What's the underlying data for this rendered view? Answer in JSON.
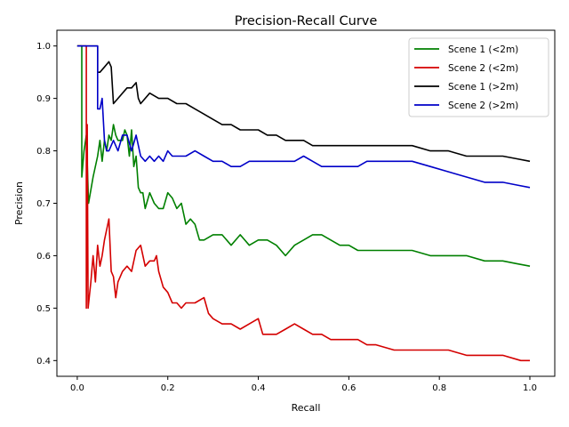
{
  "chart_data": {
    "type": "line",
    "title": "Precision-Recall Curve",
    "xlabel": "Recall",
    "ylabel": "Precision",
    "xlim": [
      -0.045,
      1.055
    ],
    "ylim": [
      0.37,
      1.03
    ],
    "xticks": [
      {
        "value": 0.0,
        "label": "0.0"
      },
      {
        "value": 0.2,
        "label": "0.2"
      },
      {
        "value": 0.4,
        "label": "0.4"
      },
      {
        "value": 0.6,
        "label": "0.6"
      },
      {
        "value": 0.8,
        "label": "0.8"
      },
      {
        "value": 1.0,
        "label": "1.0"
      }
    ],
    "yticks": [
      {
        "value": 0.4,
        "label": "0.4"
      },
      {
        "value": 0.5,
        "label": "0.5"
      },
      {
        "value": 0.6,
        "label": "0.6"
      },
      {
        "value": 0.7,
        "label": "0.7"
      },
      {
        "value": 0.8,
        "label": "0.8"
      },
      {
        "value": 0.9,
        "label": "0.9"
      },
      {
        "value": 1.0,
        "label": "1.0"
      }
    ],
    "grid": false,
    "legend_position": "top-right",
    "series": [
      {
        "name": "Scene 1 (<2m)",
        "color": "#008000",
        "points": [
          [
            0.0,
            1.0
          ],
          [
            0.005,
            1.0
          ],
          [
            0.01,
            1.0
          ],
          [
            0.01,
            0.75
          ],
          [
            0.015,
            0.8
          ],
          [
            0.02,
            0.83
          ],
          [
            0.025,
            0.7
          ],
          [
            0.035,
            0.75
          ],
          [
            0.045,
            0.79
          ],
          [
            0.05,
            0.82
          ],
          [
            0.055,
            0.78
          ],
          [
            0.06,
            0.82
          ],
          [
            0.065,
            0.8
          ],
          [
            0.07,
            0.83
          ],
          [
            0.075,
            0.82
          ],
          [
            0.08,
            0.85
          ],
          [
            0.085,
            0.83
          ],
          [
            0.09,
            0.82
          ],
          [
            0.1,
            0.82
          ],
          [
            0.105,
            0.84
          ],
          [
            0.11,
            0.83
          ],
          [
            0.115,
            0.79
          ],
          [
            0.12,
            0.84
          ],
          [
            0.125,
            0.77
          ],
          [
            0.13,
            0.79
          ],
          [
            0.135,
            0.73
          ],
          [
            0.14,
            0.72
          ],
          [
            0.145,
            0.72
          ],
          [
            0.15,
            0.69
          ],
          [
            0.16,
            0.72
          ],
          [
            0.17,
            0.7
          ],
          [
            0.18,
            0.69
          ],
          [
            0.19,
            0.69
          ],
          [
            0.2,
            0.72
          ],
          [
            0.21,
            0.71
          ],
          [
            0.22,
            0.69
          ],
          [
            0.23,
            0.7
          ],
          [
            0.24,
            0.66
          ],
          [
            0.25,
            0.67
          ],
          [
            0.26,
            0.66
          ],
          [
            0.27,
            0.63
          ],
          [
            0.28,
            0.63
          ],
          [
            0.3,
            0.64
          ],
          [
            0.32,
            0.64
          ],
          [
            0.34,
            0.62
          ],
          [
            0.36,
            0.64
          ],
          [
            0.38,
            0.62
          ],
          [
            0.4,
            0.63
          ],
          [
            0.42,
            0.63
          ],
          [
            0.44,
            0.62
          ],
          [
            0.46,
            0.6
          ],
          [
            0.48,
            0.62
          ],
          [
            0.5,
            0.63
          ],
          [
            0.52,
            0.64
          ],
          [
            0.54,
            0.64
          ],
          [
            0.56,
            0.63
          ],
          [
            0.58,
            0.62
          ],
          [
            0.6,
            0.62
          ],
          [
            0.62,
            0.61
          ],
          [
            0.65,
            0.61
          ],
          [
            0.7,
            0.61
          ],
          [
            0.74,
            0.61
          ],
          [
            0.78,
            0.6
          ],
          [
            0.82,
            0.6
          ],
          [
            0.86,
            0.6
          ],
          [
            0.9,
            0.59
          ],
          [
            0.94,
            0.59
          ],
          [
            0.97,
            0.585
          ],
          [
            1.0,
            0.58
          ]
        ]
      },
      {
        "name": "Scene 2 (<2m)",
        "color": "#d40000",
        "points": [
          [
            0.0,
            1.0
          ],
          [
            0.01,
            1.0
          ],
          [
            0.02,
            1.0
          ],
          [
            0.02,
            0.5
          ],
          [
            0.022,
            0.85
          ],
          [
            0.024,
            0.5
          ],
          [
            0.03,
            0.55
          ],
          [
            0.035,
            0.6
          ],
          [
            0.04,
            0.55
          ],
          [
            0.045,
            0.62
          ],
          [
            0.05,
            0.58
          ],
          [
            0.055,
            0.6
          ],
          [
            0.06,
            0.63
          ],
          [
            0.065,
            0.65
          ],
          [
            0.07,
            0.67
          ],
          [
            0.075,
            0.57
          ],
          [
            0.08,
            0.56
          ],
          [
            0.085,
            0.52
          ],
          [
            0.09,
            0.55
          ],
          [
            0.1,
            0.57
          ],
          [
            0.11,
            0.58
          ],
          [
            0.12,
            0.57
          ],
          [
            0.13,
            0.61
          ],
          [
            0.14,
            0.62
          ],
          [
            0.15,
            0.58
          ],
          [
            0.16,
            0.59
          ],
          [
            0.17,
            0.59
          ],
          [
            0.175,
            0.6
          ],
          [
            0.18,
            0.57
          ],
          [
            0.19,
            0.54
          ],
          [
            0.2,
            0.53
          ],
          [
            0.21,
            0.51
          ],
          [
            0.22,
            0.51
          ],
          [
            0.23,
            0.5
          ],
          [
            0.24,
            0.51
          ],
          [
            0.26,
            0.51
          ],
          [
            0.28,
            0.52
          ],
          [
            0.29,
            0.49
          ],
          [
            0.3,
            0.48
          ],
          [
            0.32,
            0.47
          ],
          [
            0.34,
            0.47
          ],
          [
            0.36,
            0.46
          ],
          [
            0.38,
            0.47
          ],
          [
            0.4,
            0.48
          ],
          [
            0.41,
            0.45
          ],
          [
            0.42,
            0.45
          ],
          [
            0.44,
            0.45
          ],
          [
            0.46,
            0.46
          ],
          [
            0.48,
            0.47
          ],
          [
            0.5,
            0.46
          ],
          [
            0.52,
            0.45
          ],
          [
            0.54,
            0.45
          ],
          [
            0.56,
            0.44
          ],
          [
            0.58,
            0.44
          ],
          [
            0.6,
            0.44
          ],
          [
            0.62,
            0.44
          ],
          [
            0.64,
            0.43
          ],
          [
            0.66,
            0.43
          ],
          [
            0.7,
            0.42
          ],
          [
            0.74,
            0.42
          ],
          [
            0.78,
            0.42
          ],
          [
            0.82,
            0.42
          ],
          [
            0.86,
            0.41
          ],
          [
            0.9,
            0.41
          ],
          [
            0.94,
            0.41
          ],
          [
            0.98,
            0.4
          ],
          [
            1.0,
            0.4
          ]
        ]
      },
      {
        "name": "Scene 1 (>2m)",
        "color": "#000000",
        "points": [
          [
            0.0,
            1.0
          ],
          [
            0.02,
            1.0
          ],
          [
            0.04,
            1.0
          ],
          [
            0.045,
            1.0
          ],
          [
            0.045,
            0.95
          ],
          [
            0.05,
            0.95
          ],
          [
            0.06,
            0.96
          ],
          [
            0.07,
            0.97
          ],
          [
            0.075,
            0.96
          ],
          [
            0.08,
            0.89
          ],
          [
            0.09,
            0.9
          ],
          [
            0.1,
            0.91
          ],
          [
            0.11,
            0.92
          ],
          [
            0.12,
            0.92
          ],
          [
            0.13,
            0.93
          ],
          [
            0.135,
            0.9
          ],
          [
            0.14,
            0.89
          ],
          [
            0.16,
            0.91
          ],
          [
            0.18,
            0.9
          ],
          [
            0.2,
            0.9
          ],
          [
            0.22,
            0.89
          ],
          [
            0.24,
            0.89
          ],
          [
            0.26,
            0.88
          ],
          [
            0.28,
            0.87
          ],
          [
            0.3,
            0.86
          ],
          [
            0.32,
            0.85
          ],
          [
            0.34,
            0.85
          ],
          [
            0.36,
            0.84
          ],
          [
            0.38,
            0.84
          ],
          [
            0.4,
            0.84
          ],
          [
            0.42,
            0.83
          ],
          [
            0.44,
            0.83
          ],
          [
            0.46,
            0.82
          ],
          [
            0.48,
            0.82
          ],
          [
            0.5,
            0.82
          ],
          [
            0.52,
            0.81
          ],
          [
            0.54,
            0.81
          ],
          [
            0.56,
            0.81
          ],
          [
            0.58,
            0.81
          ],
          [
            0.6,
            0.81
          ],
          [
            0.62,
            0.81
          ],
          [
            0.64,
            0.81
          ],
          [
            0.66,
            0.81
          ],
          [
            0.68,
            0.81
          ],
          [
            0.7,
            0.81
          ],
          [
            0.74,
            0.81
          ],
          [
            0.78,
            0.8
          ],
          [
            0.82,
            0.8
          ],
          [
            0.86,
            0.79
          ],
          [
            0.9,
            0.79
          ],
          [
            0.94,
            0.79
          ],
          [
            0.97,
            0.785
          ],
          [
            1.0,
            0.78
          ]
        ]
      },
      {
        "name": "Scene 2 (>2m)",
        "color": "#0000c8",
        "points": [
          [
            0.0,
            1.0
          ],
          [
            0.02,
            1.0
          ],
          [
            0.04,
            1.0
          ],
          [
            0.045,
            1.0
          ],
          [
            0.045,
            0.88
          ],
          [
            0.05,
            0.88
          ],
          [
            0.055,
            0.9
          ],
          [
            0.06,
            0.82
          ],
          [
            0.065,
            0.8
          ],
          [
            0.07,
            0.8
          ],
          [
            0.08,
            0.82
          ],
          [
            0.09,
            0.8
          ],
          [
            0.1,
            0.83
          ],
          [
            0.11,
            0.83
          ],
          [
            0.12,
            0.8
          ],
          [
            0.13,
            0.83
          ],
          [
            0.14,
            0.79
          ],
          [
            0.15,
            0.78
          ],
          [
            0.16,
            0.79
          ],
          [
            0.17,
            0.78
          ],
          [
            0.18,
            0.79
          ],
          [
            0.19,
            0.78
          ],
          [
            0.2,
            0.8
          ],
          [
            0.21,
            0.79
          ],
          [
            0.22,
            0.79
          ],
          [
            0.24,
            0.79
          ],
          [
            0.26,
            0.8
          ],
          [
            0.28,
            0.79
          ],
          [
            0.3,
            0.78
          ],
          [
            0.32,
            0.78
          ],
          [
            0.34,
            0.77
          ],
          [
            0.36,
            0.77
          ],
          [
            0.38,
            0.78
          ],
          [
            0.4,
            0.78
          ],
          [
            0.42,
            0.78
          ],
          [
            0.44,
            0.78
          ],
          [
            0.46,
            0.78
          ],
          [
            0.48,
            0.78
          ],
          [
            0.5,
            0.79
          ],
          [
            0.52,
            0.78
          ],
          [
            0.54,
            0.77
          ],
          [
            0.56,
            0.77
          ],
          [
            0.58,
            0.77
          ],
          [
            0.6,
            0.77
          ],
          [
            0.62,
            0.77
          ],
          [
            0.64,
            0.78
          ],
          [
            0.66,
            0.78
          ],
          [
            0.68,
            0.78
          ],
          [
            0.7,
            0.78
          ],
          [
            0.74,
            0.78
          ],
          [
            0.78,
            0.77
          ],
          [
            0.82,
            0.76
          ],
          [
            0.86,
            0.75
          ],
          [
            0.9,
            0.74
          ],
          [
            0.94,
            0.74
          ],
          [
            0.97,
            0.735
          ],
          [
            1.0,
            0.73
          ]
        ]
      }
    ]
  }
}
